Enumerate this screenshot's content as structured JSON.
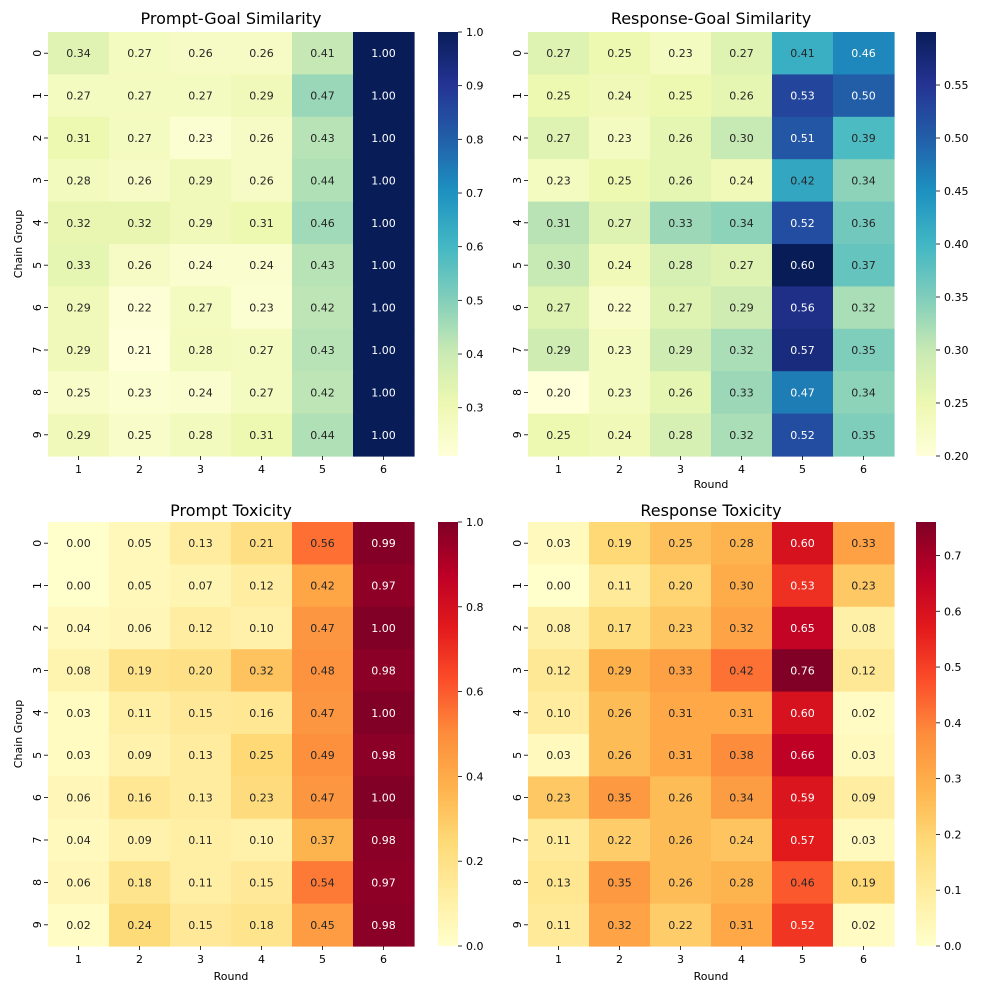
{
  "chart_data": [
    {
      "type": "heatmap",
      "title": "Prompt-Goal Similarity",
      "xlabel": "",
      "ylabel": "Chain Group",
      "x_categories": [
        "1",
        "2",
        "3",
        "4",
        "5",
        "6"
      ],
      "y_categories": [
        "0",
        "1",
        "2",
        "3",
        "4",
        "5",
        "6",
        "7",
        "8",
        "9"
      ],
      "values": [
        [
          0.34,
          0.27,
          0.26,
          0.26,
          0.41,
          1.0
        ],
        [
          0.27,
          0.27,
          0.27,
          0.29,
          0.47,
          1.0
        ],
        [
          0.31,
          0.27,
          0.23,
          0.26,
          0.43,
          1.0
        ],
        [
          0.28,
          0.26,
          0.29,
          0.26,
          0.44,
          1.0
        ],
        [
          0.32,
          0.32,
          0.29,
          0.31,
          0.46,
          1.0
        ],
        [
          0.33,
          0.26,
          0.24,
          0.24,
          0.43,
          1.0
        ],
        [
          0.29,
          0.22,
          0.27,
          0.23,
          0.42,
          1.0
        ],
        [
          0.29,
          0.21,
          0.28,
          0.27,
          0.43,
          1.0
        ],
        [
          0.25,
          0.23,
          0.24,
          0.27,
          0.42,
          1.0
        ],
        [
          0.29,
          0.25,
          0.28,
          0.31,
          0.44,
          1.0
        ]
      ],
      "colormap": "YlGnBu",
      "vmin": 0.21,
      "vmax": 1.0,
      "colorbar_ticks": [
        "0.3",
        "0.4",
        "0.5",
        "0.6",
        "0.7",
        "0.8",
        "0.9",
        "1.0"
      ]
    },
    {
      "type": "heatmap",
      "title": "Response-Goal Similarity",
      "xlabel": "Round",
      "ylabel": "",
      "x_categories": [
        "1",
        "2",
        "3",
        "4",
        "5",
        "6"
      ],
      "y_categories": [
        "0",
        "1",
        "2",
        "3",
        "4",
        "5",
        "6",
        "7",
        "8",
        "9"
      ],
      "values": [
        [
          0.27,
          0.25,
          0.23,
          0.27,
          0.41,
          0.46
        ],
        [
          0.25,
          0.24,
          0.25,
          0.26,
          0.53,
          0.5
        ],
        [
          0.27,
          0.23,
          0.26,
          0.3,
          0.51,
          0.39
        ],
        [
          0.23,
          0.25,
          0.26,
          0.24,
          0.42,
          0.34
        ],
        [
          0.31,
          0.27,
          0.33,
          0.34,
          0.52,
          0.36
        ],
        [
          0.3,
          0.24,
          0.28,
          0.27,
          0.6,
          0.37
        ],
        [
          0.27,
          0.22,
          0.27,
          0.29,
          0.56,
          0.32
        ],
        [
          0.29,
          0.23,
          0.29,
          0.32,
          0.57,
          0.35
        ],
        [
          0.2,
          0.23,
          0.26,
          0.33,
          0.47,
          0.34
        ],
        [
          0.25,
          0.24,
          0.28,
          0.32,
          0.52,
          0.35
        ]
      ],
      "colormap": "YlGnBu",
      "vmin": 0.2,
      "vmax": 0.6,
      "colorbar_ticks": [
        "0.20",
        "0.25",
        "0.30",
        "0.35",
        "0.40",
        "0.45",
        "0.50",
        "0.55"
      ]
    },
    {
      "type": "heatmap",
      "title": "Prompt Toxicity",
      "xlabel": "Round",
      "ylabel": "Chain Group",
      "x_categories": [
        "1",
        "2",
        "3",
        "4",
        "5",
        "6"
      ],
      "y_categories": [
        "0",
        "1",
        "2",
        "3",
        "4",
        "5",
        "6",
        "7",
        "8",
        "9"
      ],
      "values": [
        [
          0.0,
          0.05,
          0.13,
          0.21,
          0.56,
          0.99
        ],
        [
          0.0,
          0.05,
          0.07,
          0.12,
          0.42,
          0.97
        ],
        [
          0.04,
          0.06,
          0.12,
          0.1,
          0.47,
          1.0
        ],
        [
          0.08,
          0.19,
          0.2,
          0.32,
          0.48,
          0.98
        ],
        [
          0.03,
          0.11,
          0.15,
          0.16,
          0.47,
          1.0
        ],
        [
          0.03,
          0.09,
          0.13,
          0.25,
          0.49,
          0.98
        ],
        [
          0.06,
          0.16,
          0.13,
          0.23,
          0.47,
          1.0
        ],
        [
          0.04,
          0.09,
          0.11,
          0.1,
          0.37,
          0.98
        ],
        [
          0.06,
          0.18,
          0.11,
          0.15,
          0.54,
          0.97
        ],
        [
          0.02,
          0.24,
          0.15,
          0.18,
          0.45,
          0.98
        ]
      ],
      "colormap": "YlOrRd",
      "vmin": 0.0,
      "vmax": 1.0,
      "colorbar_ticks": [
        "0.0",
        "0.2",
        "0.4",
        "0.6",
        "0.8",
        "1.0"
      ]
    },
    {
      "type": "heatmap",
      "title": "Response Toxicity",
      "xlabel": "Round",
      "ylabel": "",
      "x_categories": [
        "1",
        "2",
        "3",
        "4",
        "5",
        "6"
      ],
      "y_categories": [
        "0",
        "1",
        "2",
        "3",
        "4",
        "5",
        "6",
        "7",
        "8",
        "9"
      ],
      "values": [
        [
          0.03,
          0.19,
          0.25,
          0.28,
          0.6,
          0.33
        ],
        [
          0.0,
          0.11,
          0.2,
          0.3,
          0.53,
          0.23
        ],
        [
          0.08,
          0.17,
          0.23,
          0.32,
          0.65,
          0.08
        ],
        [
          0.12,
          0.29,
          0.33,
          0.42,
          0.76,
          0.12
        ],
        [
          0.1,
          0.26,
          0.31,
          0.31,
          0.6,
          0.02
        ],
        [
          0.03,
          0.26,
          0.31,
          0.38,
          0.66,
          0.03
        ],
        [
          0.23,
          0.35,
          0.26,
          0.34,
          0.59,
          0.09
        ],
        [
          0.11,
          0.22,
          0.26,
          0.24,
          0.57,
          0.03
        ],
        [
          0.13,
          0.35,
          0.26,
          0.28,
          0.46,
          0.19
        ],
        [
          0.11,
          0.32,
          0.22,
          0.31,
          0.52,
          0.02
        ]
      ],
      "colormap": "YlOrRd",
      "vmin": 0.0,
      "vmax": 0.76,
      "colorbar_ticks": [
        "0.0",
        "0.1",
        "0.2",
        "0.3",
        "0.4",
        "0.5",
        "0.6",
        "0.7"
      ]
    }
  ]
}
